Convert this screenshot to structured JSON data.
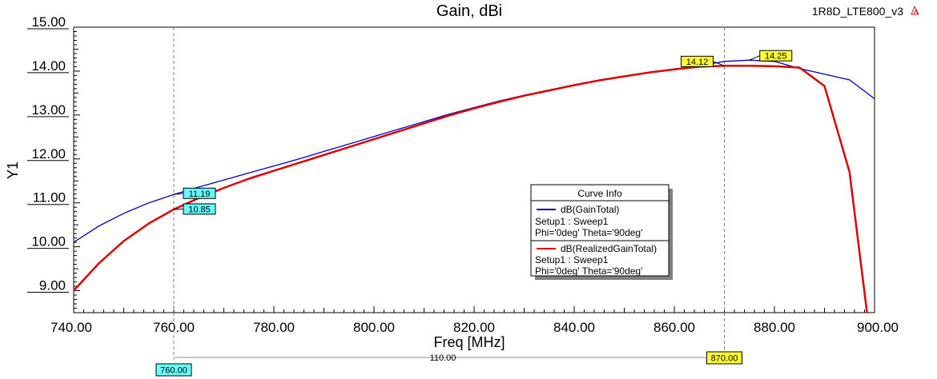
{
  "chart_data": {
    "type": "line",
    "title": "Gain, dBi",
    "design_name": "1R8D_LTE800_v3",
    "xlabel": "Freq [MHz]",
    "ylabel": "Y1",
    "xlim": [
      740,
      900
    ],
    "ylim": [
      8.5,
      15.0
    ],
    "x_ticks": [
      "740.00",
      "760.00",
      "780.00",
      "800.00",
      "820.00",
      "840.00",
      "860.00",
      "880.00",
      "900.00"
    ],
    "y_ticks": [
      "9.00",
      "10.00",
      "11.00",
      "12.00",
      "13.00",
      "14.00",
      "15.00"
    ],
    "grid": false,
    "legend_position": "center-right",
    "legend_title": "Curve Info",
    "series": [
      {
        "name": "dB(GainTotal)",
        "setup": "Setup1 : Sweep1",
        "params": "Phi='0deg' Theta='90deg'",
        "color": "#0000cc",
        "x": [
          740,
          745,
          750,
          755,
          760,
          765,
          770,
          775,
          780,
          785,
          790,
          795,
          800,
          805,
          810,
          815,
          820,
          825,
          830,
          835,
          840,
          845,
          850,
          855,
          860,
          865,
          870,
          875,
          880,
          885,
          890,
          895,
          900
        ],
        "y": [
          10.1,
          10.47,
          10.76,
          11.0,
          11.19,
          11.36,
          11.52,
          11.68,
          11.84,
          12.0,
          12.17,
          12.34,
          12.51,
          12.68,
          12.85,
          13.02,
          13.17,
          13.32,
          13.45,
          13.57,
          13.68,
          13.78,
          13.88,
          13.97,
          14.05,
          14.12,
          14.22,
          14.25,
          14.22,
          14.06,
          13.93,
          13.8,
          13.37
        ]
      },
      {
        "name": "dB(RealizedGainTotal)",
        "setup": "Setup1 : Sweep1",
        "params": "Phi='0deg' Theta='90deg'",
        "color": "#dd0000",
        "x": [
          740,
          745,
          750,
          755,
          760,
          765,
          770,
          775,
          780,
          785,
          790,
          795,
          800,
          805,
          810,
          815,
          820,
          825,
          830,
          835,
          840,
          845,
          850,
          855,
          860,
          865,
          870,
          875,
          880,
          885,
          890,
          895,
          898.5
        ],
        "y": [
          9.0,
          9.62,
          10.13,
          10.53,
          10.85,
          11.11,
          11.34,
          11.55,
          11.73,
          11.91,
          12.09,
          12.27,
          12.45,
          12.63,
          12.81,
          12.99,
          13.15,
          13.3,
          13.44,
          13.56,
          13.68,
          13.79,
          13.88,
          13.97,
          14.04,
          14.1,
          14.12,
          14.12,
          14.11,
          14.08,
          13.66,
          11.7,
          8.5
        ]
      }
    ],
    "markers": [
      {
        "label": "11.19",
        "x": 760,
        "y": 11.19,
        "style": "cyan"
      },
      {
        "label": "10.85",
        "x": 760,
        "y": 10.85,
        "style": "cyan"
      },
      {
        "label": "14.12",
        "x": 870,
        "y": 14.12,
        "style": "yellow"
      },
      {
        "label": "14.25",
        "x": 875,
        "y": 14.25,
        "style": "yellow"
      }
    ],
    "x_markers": [
      {
        "label": "760.00",
        "x": 760,
        "style": "cyan"
      },
      {
        "label": "870.00",
        "x": 870,
        "style": "yellow"
      }
    ],
    "delta_label": "110.00"
  }
}
